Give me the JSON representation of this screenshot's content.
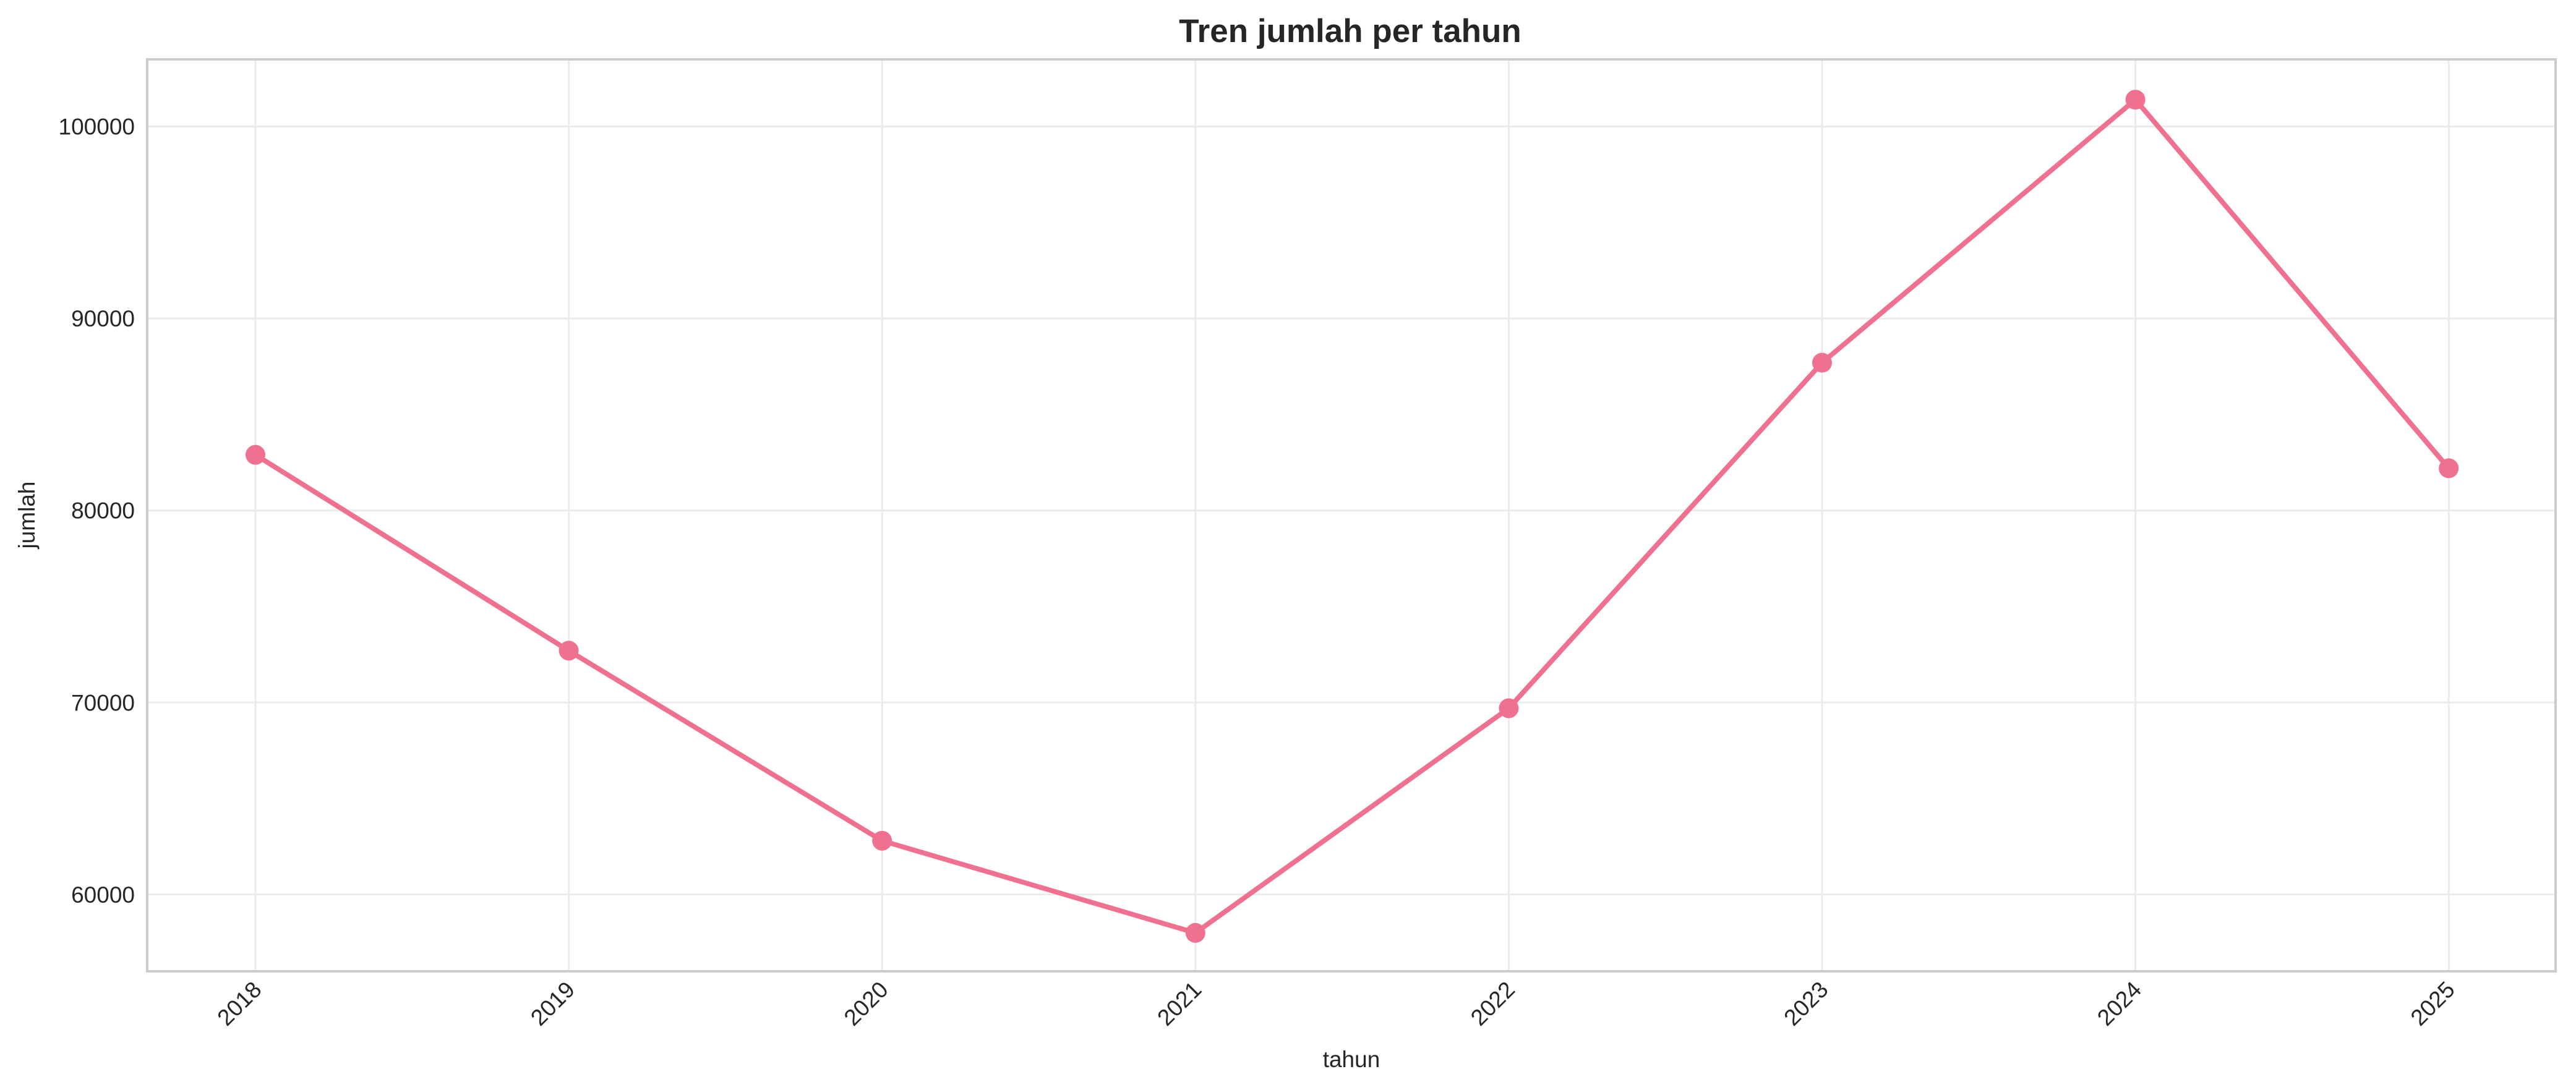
{
  "chart_data": {
    "type": "line",
    "title": "Tren jumlah per tahun",
    "xlabel": "tahun",
    "ylabel": "jumlah",
    "x": [
      "2018",
      "2019",
      "2020",
      "2021",
      "2022",
      "2023",
      "2024",
      "2025"
    ],
    "series": [
      {
        "values": [
          82900,
          72700,
          62800,
          58000,
          69700,
          87700,
          101400,
          82200
        ],
        "color": "#f07090"
      }
    ],
    "yticks": [
      "60000",
      "70000",
      "80000",
      "90000",
      "100000"
    ],
    "ylim": [
      56000,
      103500
    ],
    "grid": true,
    "legend": "none",
    "markers": true
  }
}
